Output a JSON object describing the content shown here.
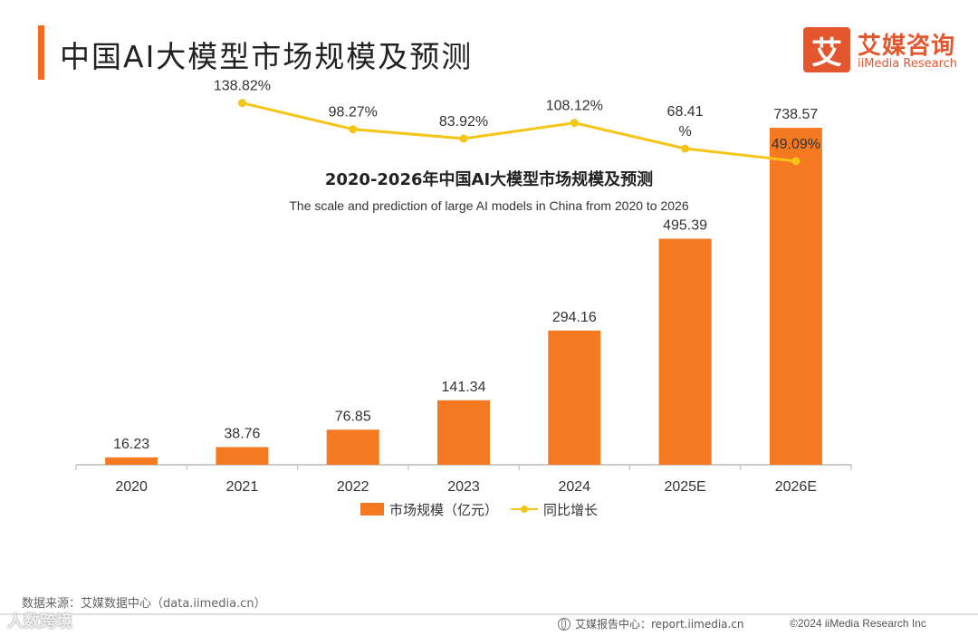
{
  "header": {
    "title": "中国AI大模型市场规模及预测",
    "logo_mark": "艾",
    "logo_cn": "艾媒咨询",
    "logo_en": "iiMedia Research"
  },
  "colors": {
    "accent": "#f26b21",
    "bar": "#f47920",
    "line": "#f5c518",
    "axis": "#bbbbbb",
    "logo": "#e4572e"
  },
  "chart_data": {
    "type": "bar",
    "title": "2020-2026年中国AI大模型市场规模及预测",
    "subtitle": "The scale and prediction of large AI models in China from 2020 to 2026",
    "categories": [
      "2020",
      "2021",
      "2022",
      "2023",
      "2024",
      "2025E",
      "2026E"
    ],
    "series": [
      {
        "name": "市场规模（亿元）",
        "type": "bar",
        "values": [
          16.23,
          38.76,
          76.85,
          141.34,
          294.16,
          495.39,
          738.57
        ],
        "labels": [
          "16.23",
          "38.76",
          "76.85",
          "141.34",
          "294.16",
          "495.39",
          "738.57"
        ]
      },
      {
        "name": "同比增长",
        "type": "line",
        "values": [
          null,
          138.82,
          98.27,
          83.92,
          108.12,
          68.41,
          49.09
        ],
        "labels": [
          "",
          "138.82%",
          "98.27%",
          "83.92%",
          "108.12%",
          "68.41\n%",
          "49.09%"
        ]
      }
    ],
    "bar_ylim": [
      0,
      830
    ],
    "line_ylim": [
      -420,
      165
    ],
    "grid": false,
    "legend_position": "bottom"
  },
  "footer": {
    "source": "数据来源：艾媒数据中心（data.iimedia.cn）",
    "report": "艾媒报告中心：report.iimedia.cn",
    "copyright": "©2024  iiMedia Research  Inc",
    "watermark": "人数跨境"
  }
}
